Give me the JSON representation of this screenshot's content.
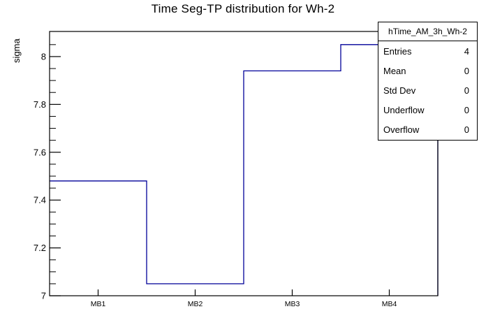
{
  "chart_data": {
    "type": "step-histogram",
    "title": "Time Seg-TP distribution for Wh-2",
    "xlabel": "",
    "ylabel": "sigma",
    "categories": [
      "MB1",
      "MB2",
      "MB3",
      "MB4"
    ],
    "values": [
      7.48,
      7.05,
      7.94,
      8.05
    ],
    "ylim": [
      7,
      8.105
    ],
    "yticks_major": [
      7,
      7.2,
      7.4,
      7.6,
      7.8,
      8
    ],
    "ytick_labels": [
      "7",
      "7.2",
      "7.4",
      "7.6",
      "7.8",
      "8"
    ],
    "y_minor_step": 0.05,
    "grid": false,
    "legend_position": "none",
    "line_color": "#000099",
    "frame_color": "#000000"
  },
  "stats_box": {
    "header": "hTime_AM_3h_Wh-2",
    "rows": [
      {
        "label": "Entries",
        "value": "4"
      },
      {
        "label": "Mean",
        "value": "0"
      },
      {
        "label": "Std Dev",
        "value": "0"
      },
      {
        "label": "Underflow",
        "value": "0"
      },
      {
        "label": "Overflow",
        "value": "0"
      }
    ]
  }
}
